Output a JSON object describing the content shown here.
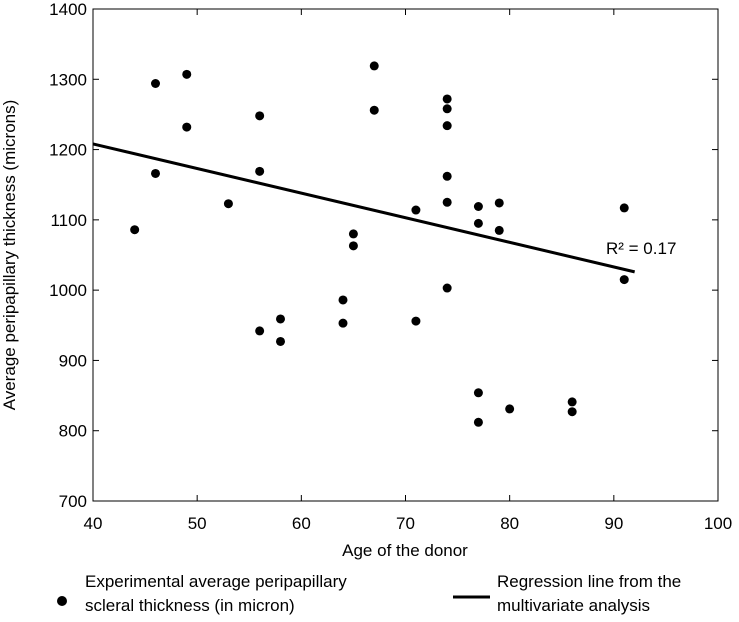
{
  "chart_data": {
    "type": "scatter",
    "x_label": "Age of the donor",
    "y_label": "Average peripapillary thickness (microns)",
    "annotation": "R² = 0.17",
    "xlim": [
      40,
      100
    ],
    "xticks": [
      40,
      50,
      60,
      70,
      80,
      90,
      100
    ],
    "ylim": [
      700,
      1400
    ],
    "yticks": [
      700,
      800,
      900,
      1000,
      1100,
      1200,
      1300,
      1400
    ],
    "grid": false,
    "series": [
      {
        "name": "Experimental average peripapillary scleral thickness (in micron)",
        "color": "#000000",
        "kind": "scatter",
        "x": [
          44,
          46,
          46,
          49,
          49,
          53,
          56,
          56,
          56,
          58,
          58,
          64,
          64,
          65,
          65,
          67,
          67,
          71,
          71,
          74,
          74,
          74,
          74,
          74,
          74,
          77,
          77,
          77,
          77,
          79,
          79,
          80,
          86,
          86,
          91,
          91
        ],
        "values": [
          1086,
          1294,
          1166,
          1307,
          1232,
          1123,
          1248,
          1169,
          942,
          959,
          927,
          986,
          953,
          1080,
          1063,
          1319,
          1256,
          1114,
          956,
          1272,
          1258,
          1234,
          1162,
          1125,
          1003,
          1119,
          1095,
          854,
          812,
          1124,
          1085,
          831,
          841,
          827,
          1117,
          1015
        ]
      },
      {
        "name": "Regression line from the multivariate analysis",
        "color": "#000000",
        "kind": "line",
        "x": [
          40,
          92
        ],
        "values": [
          1208,
          1026
        ]
      }
    ]
  }
}
